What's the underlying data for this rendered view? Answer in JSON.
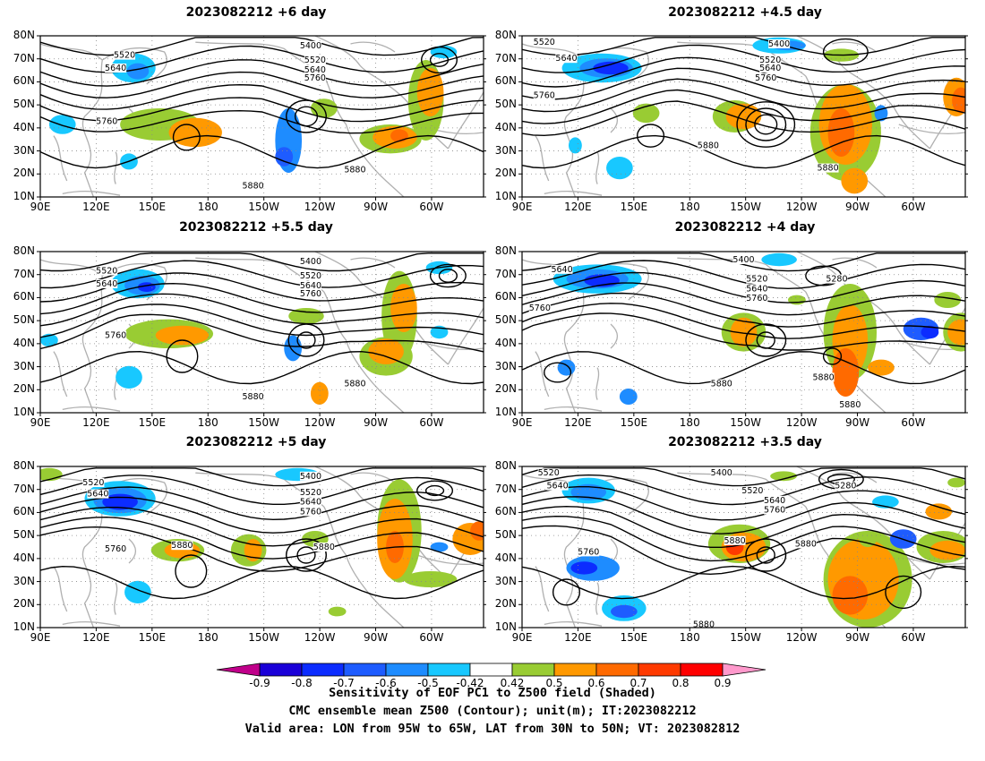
{
  "panels": [
    {
      "title": "2023082212 +6 day"
    },
    {
      "title": "2023082212 +4.5 day"
    },
    {
      "title": "2023082212 +5.5 day"
    },
    {
      "title": "2023082212 +4 day"
    },
    {
      "title": "2023082212 +5 day"
    },
    {
      "title": "2023082212 +3.5 day"
    }
  ],
  "axes": {
    "lat_labels": [
      "80N",
      "70N",
      "60N",
      "50N",
      "40N",
      "30N",
      "20N",
      "10N"
    ],
    "lon_labels": [
      "90E",
      "120E",
      "150E",
      "180",
      "150W",
      "120W",
      "90W",
      "60W"
    ]
  },
  "contour_labels": {
    "p0": [
      "5400",
      "5520",
      "5640",
      "5520",
      "5640",
      "5760",
      "5760",
      "5880",
      "5880"
    ],
    "p1": [
      "5520",
      "5640",
      "5760",
      "5400",
      "5520",
      "5640",
      "5760",
      "5880",
      "5880"
    ],
    "p2": [
      "5400",
      "5520",
      "5640",
      "5520",
      "5640",
      "5760",
      "5760",
      "5880",
      "5880"
    ],
    "p3": [
      "5640",
      "5760",
      "5400",
      "5520",
      "5640",
      "5760",
      "5280",
      "5880",
      "5880",
      "5880"
    ],
    "p4": [
      "5520",
      "5640",
      "5400",
      "5520",
      "5640",
      "5760",
      "5760",
      "5880",
      "5880"
    ],
    "p5": [
      "5520",
      "5640",
      "5400",
      "5520",
      "5640",
      "5760",
      "5280",
      "5760",
      "5880",
      "5880",
      "5880"
    ]
  },
  "colorbar": {
    "labels": [
      "-0.9",
      "-0.8",
      "-0.7",
      "-0.6",
      "-0.5",
      "-0.42",
      "0.42",
      "0.5",
      "0.6",
      "0.7",
      "0.8",
      "0.9"
    ],
    "colors": [
      "#1a00d8",
      "#0c2cff",
      "#1e5cff",
      "#1e8cff",
      "#18c8ff",
      "#ffffff",
      "#99cc33",
      "#ff9900",
      "#ff6a00",
      "#ff3a00",
      "#ff0000"
    ],
    "left_arrow_color": "#c0008a",
    "right_arrow_color": "#ff99cc"
  },
  "caption": {
    "line1": "Sensitivity of EOF PC1 to Z500 field (Shaded)",
    "line2": "CMC ensemble mean Z500 (Contour); unit(m); IT:2023082212",
    "line3": "Valid area: LON from 95W to 65W, LAT from 30N to 50N; VT: 2023082812"
  }
}
